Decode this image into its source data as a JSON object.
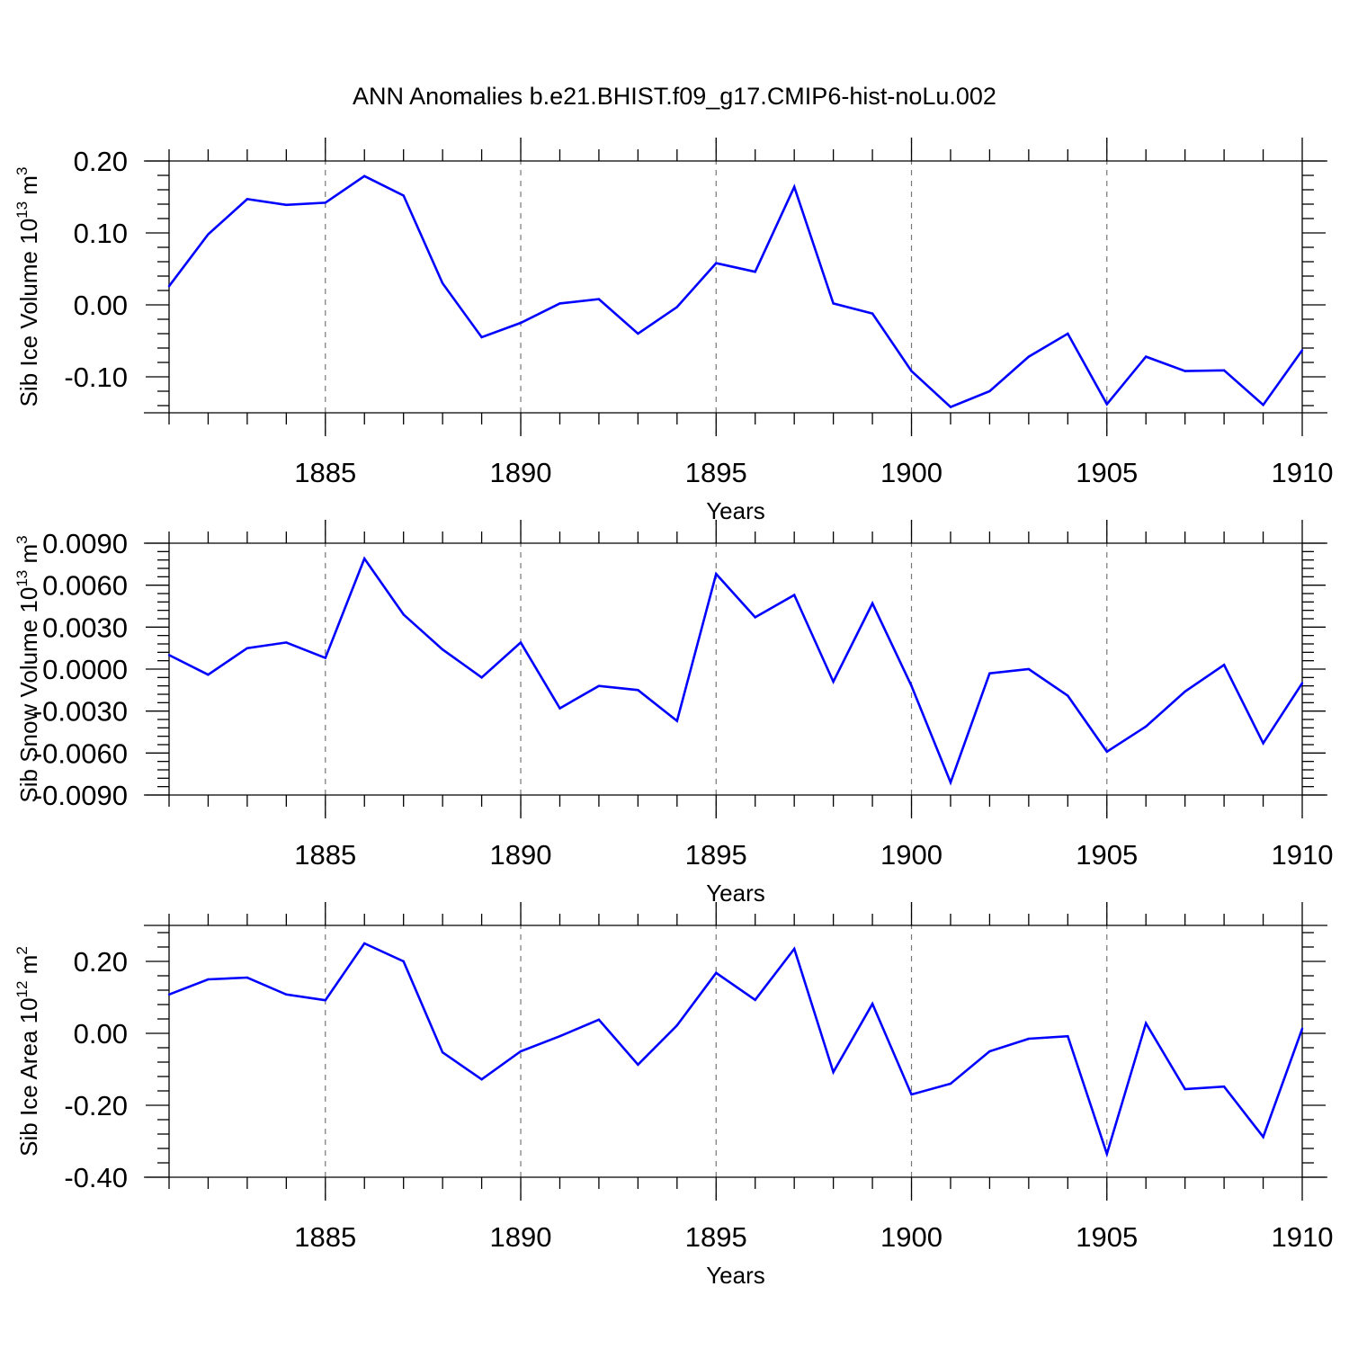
{
  "figure": {
    "title": "ANN Anomalies b.e21.BHIST.f09_g17.CMIP6-hist-noLu.002",
    "line_color": "#0000ff"
  },
  "chart_data": [
    {
      "type": "line",
      "ylabel_text": "Sib Ice Volume 10",
      "ylabel_exp": "13",
      "ylabel_unit": " m",
      "ylabel_unit_exp": "3",
      "xlabel": "Years",
      "xlim": [
        1881,
        1910
      ],
      "ylim": [
        -0.15,
        0.2
      ],
      "xticks": [
        1885,
        1890,
        1895,
        1900,
        1905,
        1910
      ],
      "yticks": [
        0.2,
        0.1,
        0.0,
        -0.1
      ],
      "ytick_labels": [
        "0.20",
        "0.10",
        "0.00",
        "-0.10"
      ],
      "grid": "dashed vertical at major x ticks",
      "series": [
        {
          "name": "Sib Ice Volume",
          "x": [
            1881,
            1882,
            1883,
            1884,
            1885,
            1886,
            1887,
            1888,
            1889,
            1890,
            1891,
            1892,
            1893,
            1894,
            1895,
            1896,
            1897,
            1898,
            1899,
            1900,
            1901,
            1902,
            1903,
            1904,
            1905,
            1906,
            1907,
            1908,
            1909,
            1910
          ],
          "y": [
            0.026,
            0.098,
            0.147,
            0.139,
            0.142,
            0.179,
            0.152,
            0.03,
            -0.045,
            -0.025,
            0.002,
            0.008,
            -0.04,
            -0.003,
            0.058,
            0.046,
            0.164,
            0.002,
            -0.012,
            -0.092,
            -0.142,
            -0.12,
            -0.072,
            -0.04,
            -0.138,
            -0.072,
            -0.092,
            -0.091,
            -0.139,
            -0.063
          ]
        }
      ]
    },
    {
      "type": "line",
      "ylabel_text": "Sib Snow Volume 10",
      "ylabel_exp": "13",
      "ylabel_unit": " m",
      "ylabel_unit_exp": "3",
      "xlabel": "Years",
      "xlim": [
        1881,
        1910
      ],
      "ylim": [
        -0.009,
        0.009
      ],
      "xticks": [
        1885,
        1890,
        1895,
        1900,
        1905,
        1910
      ],
      "yticks": [
        0.009,
        0.006,
        0.003,
        0.0,
        -0.003,
        -0.006,
        -0.009
      ],
      "ytick_labels": [
        "0.0090",
        "0.0060",
        "0.0030",
        "0.0000",
        "-0.0030",
        "-0.0060",
        "-0.0090"
      ],
      "grid": "dashed vertical at major x ticks",
      "series": [
        {
          "name": "Sib Snow Volume",
          "x": [
            1881,
            1882,
            1883,
            1884,
            1885,
            1886,
            1887,
            1888,
            1889,
            1890,
            1891,
            1892,
            1893,
            1894,
            1895,
            1896,
            1897,
            1898,
            1899,
            1900,
            1901,
            1902,
            1903,
            1904,
            1905,
            1906,
            1907,
            1908,
            1909,
            1910
          ],
          "y": [
            0.001,
            -0.0004,
            0.0015,
            0.0019,
            0.0008,
            0.0079,
            0.0039,
            0.0014,
            -0.0006,
            0.0019,
            -0.0028,
            -0.0012,
            -0.0015,
            -0.0037,
            0.0068,
            0.0037,
            0.0053,
            -0.0009,
            0.0047,
            -0.0012,
            -0.0081,
            -0.0003,
            0.0,
            -0.0019,
            -0.0059,
            -0.0041,
            -0.0016,
            0.0003,
            -0.0053,
            -0.001
          ]
        }
      ]
    },
    {
      "type": "line",
      "ylabel_text": "Sib Ice Area 10",
      "ylabel_exp": "12",
      "ylabel_unit": " m",
      "ylabel_unit_exp": "2",
      "xlabel": "Years",
      "xlim": [
        1881,
        1910
      ],
      "ylim": [
        -0.4,
        0.3
      ],
      "xticks": [
        1885,
        1890,
        1895,
        1900,
        1905,
        1910
      ],
      "yticks": [
        0.2,
        0.0,
        -0.2,
        -0.4
      ],
      "ytick_labels": [
        "0.20",
        "0.00",
        "-0.20",
        "-0.40"
      ],
      "grid": "dashed vertical at major x ticks",
      "series": [
        {
          "name": "Sib Ice Area",
          "x": [
            1881,
            1882,
            1883,
            1884,
            1885,
            1886,
            1887,
            1888,
            1889,
            1890,
            1891,
            1892,
            1893,
            1894,
            1895,
            1896,
            1897,
            1898,
            1899,
            1900,
            1901,
            1902,
            1903,
            1904,
            1905,
            1906,
            1907,
            1908,
            1909,
            1910
          ],
          "y": [
            0.108,
            0.15,
            0.155,
            0.108,
            0.092,
            0.25,
            0.2,
            -0.053,
            -0.128,
            -0.05,
            -0.008,
            0.038,
            -0.087,
            0.022,
            0.168,
            0.093,
            0.235,
            -0.108,
            0.082,
            -0.17,
            -0.14,
            -0.05,
            -0.015,
            -0.008,
            -0.335,
            0.028,
            -0.155,
            -0.148,
            -0.288,
            0.013
          ]
        }
      ]
    }
  ]
}
